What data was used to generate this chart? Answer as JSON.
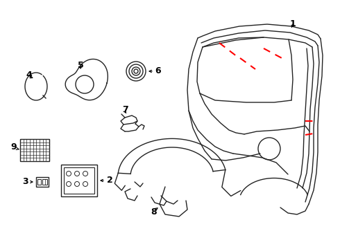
{
  "background_color": "#ffffff",
  "line_color": "#222222",
  "red_color": "#ff0000",
  "label_color": "#000000",
  "figsize": [
    4.9,
    3.6
  ],
  "dpi": 100
}
